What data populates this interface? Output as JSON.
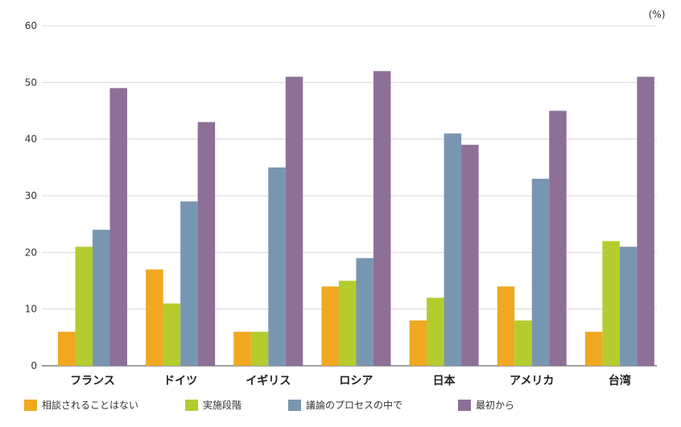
{
  "chart_data": {
    "type": "bar",
    "unit_label": "(%)",
    "categories": [
      "フランス",
      "ドイツ",
      "イギリス",
      "ロシア",
      "日本",
      "アメリカ",
      "台湾"
    ],
    "series": [
      {
        "name": "相談されることはない",
        "color": "#f0a820",
        "values": [
          6,
          17,
          6,
          14,
          8,
          14,
          6
        ]
      },
      {
        "name": "実施段階",
        "color": "#b5cc2e",
        "values": [
          21,
          11,
          6,
          15,
          12,
          8,
          22
        ]
      },
      {
        "name": "議論のプロセスの中で",
        "color": "#7896b2",
        "values": [
          24,
          29,
          35,
          19,
          41,
          33,
          21
        ]
      },
      {
        "name": "最初から",
        "color": "#8d6f98",
        "values": [
          49,
          43,
          51,
          52,
          39,
          45,
          51
        ]
      }
    ],
    "yticks": [
      "0",
      "10",
      "20",
      "30",
      "40",
      "50",
      "60"
    ],
    "ylim": [
      0,
      60
    ],
    "grid": true,
    "legend_position": "bottom"
  }
}
